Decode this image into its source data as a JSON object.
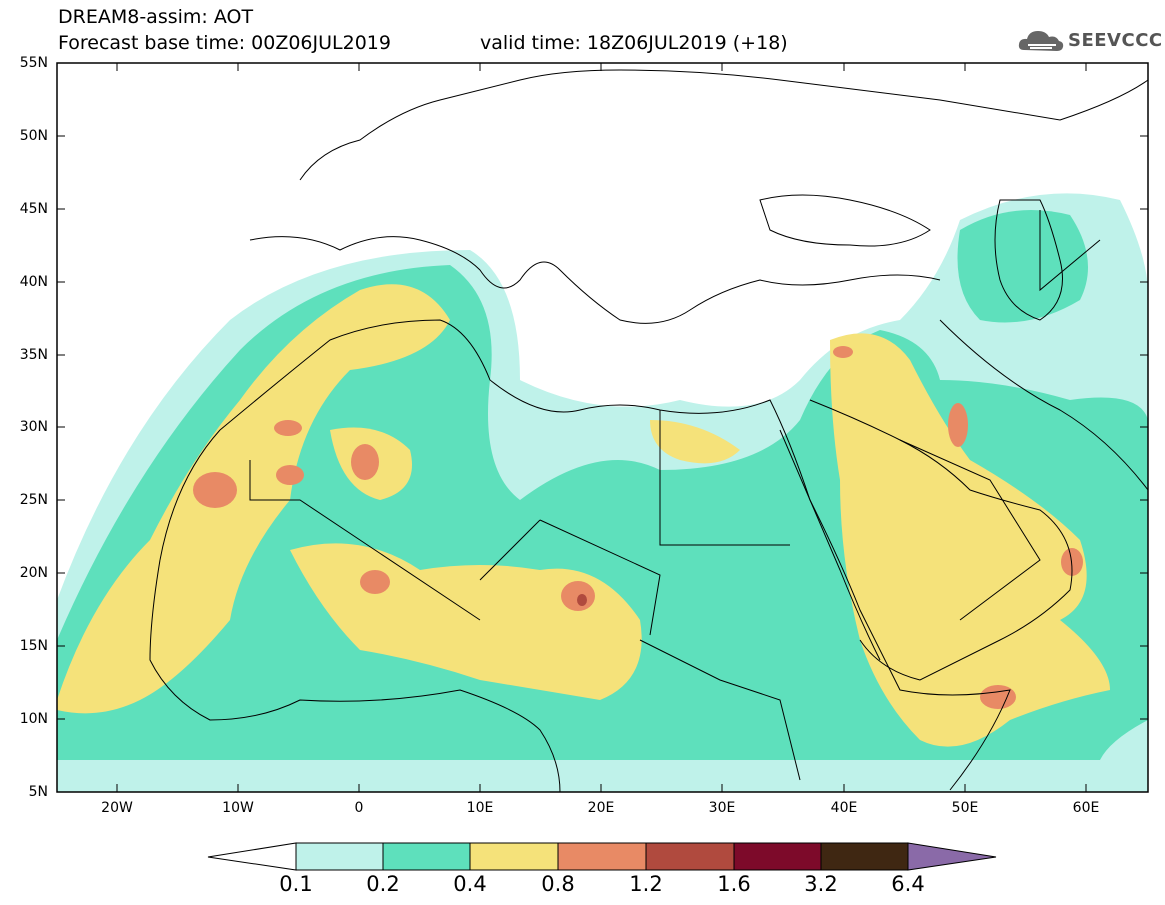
{
  "header": {
    "title": "DREAM8-assim: AOT",
    "base_time": "Forecast base time: 00Z06JUL2019",
    "valid_time": "valid time: 18Z06JUL2019 (+18)"
  },
  "logo": {
    "text": "SEEVCCC",
    "icon": "cloud-icon"
  },
  "map": {
    "lat_labels": [
      "55N",
      "50N",
      "45N",
      "40N",
      "35N",
      "30N",
      "25N",
      "20N",
      "15N",
      "10N",
      "5N"
    ],
    "lon_labels": [
      "20W",
      "10W",
      "0",
      "10E",
      "20E",
      "30E",
      "40E",
      "50E",
      "60E"
    ]
  },
  "colorbar": {
    "labels": [
      "0.1",
      "0.2",
      "0.4",
      "0.8",
      "1.2",
      "1.6",
      "3.2",
      "6.4"
    ],
    "colors": [
      "#ffffff",
      "#bff2ea",
      "#5ee0bc",
      "#f5e27a",
      "#e88a65",
      "#b04a3e",
      "#7d0a2a",
      "#3f2712",
      "#8a6aa8"
    ]
  }
}
